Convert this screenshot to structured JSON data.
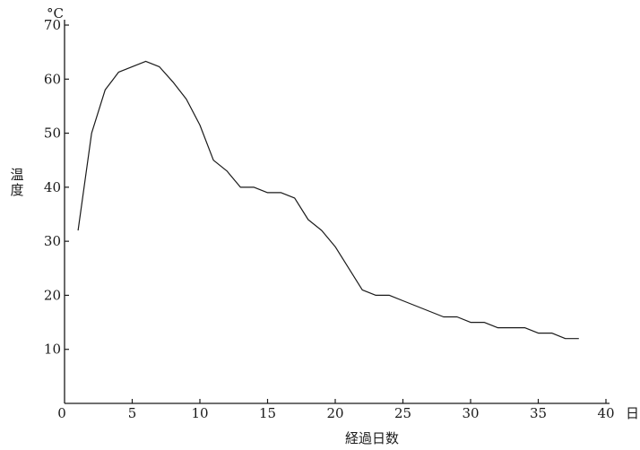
{
  "chart_data": {
    "type": "line",
    "title": "",
    "xlabel": "経過日数",
    "x_unit": "日",
    "ylabel": "温度",
    "y_unit": "°C",
    "xlim": [
      0,
      40
    ],
    "ylim": [
      0,
      70
    ],
    "x_ticks": [
      0,
      5,
      10,
      15,
      20,
      25,
      30,
      35,
      40
    ],
    "y_ticks": [
      10,
      20,
      30,
      40,
      50,
      60,
      70
    ],
    "grid": false,
    "series": [
      {
        "x": [
          1,
          2,
          3,
          4,
          5,
          6,
          7,
          8,
          9,
          10,
          11,
          12,
          13,
          14,
          15,
          16,
          17,
          18,
          19,
          20,
          21,
          22,
          23,
          24,
          25,
          26,
          27,
          28,
          29,
          30,
          31,
          32,
          33,
          34,
          35,
          36,
          37,
          38
        ],
        "y": [
          32,
          50,
          58,
          61.3,
          62.3,
          63.3,
          62.3,
          59.5,
          56.3,
          51.5,
          45,
          43,
          40,
          40,
          39,
          39,
          38,
          34,
          32,
          29,
          25,
          21,
          20,
          20,
          19,
          18,
          17,
          16,
          16,
          15,
          15,
          14,
          14,
          14,
          13,
          13,
          12,
          12
        ]
      }
    ]
  }
}
